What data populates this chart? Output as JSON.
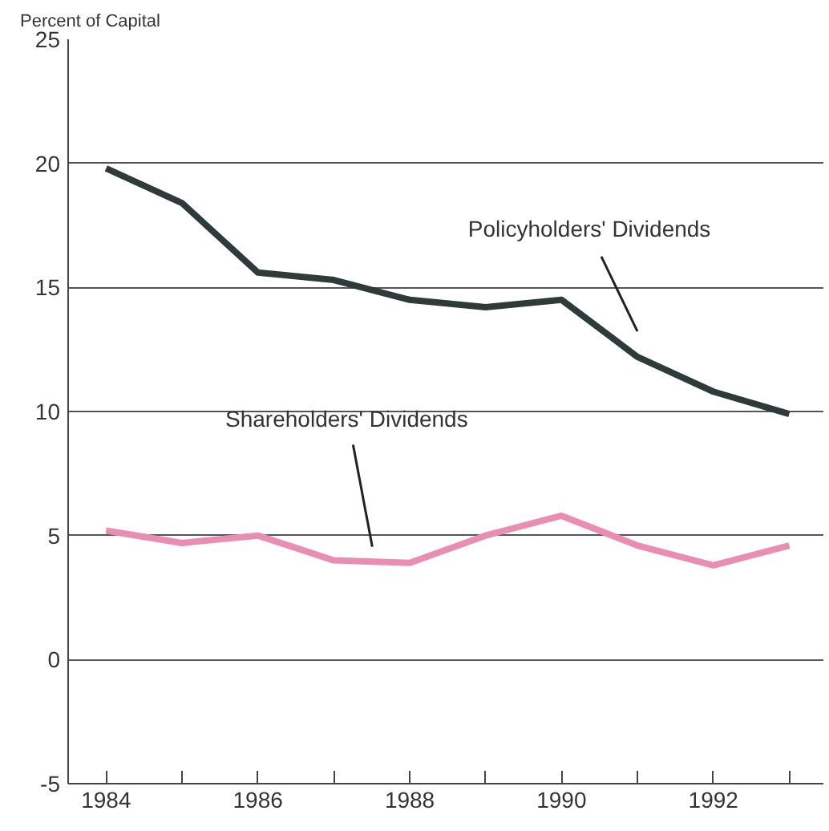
{
  "chart_data": {
    "type": "line",
    "ylabel": "Percent of Capital",
    "x": [
      1984,
      1985,
      1986,
      1987,
      1988,
      1989,
      1990,
      1991,
      1992,
      1993
    ],
    "series": [
      {
        "name": "Policyholders' Dividends",
        "color": "#2f3b3b",
        "values": [
          19.8,
          18.4,
          15.6,
          15.3,
          14.5,
          14.2,
          14.5,
          12.2,
          10.8,
          9.9
        ]
      },
      {
        "name": "Shareholders' Dividends",
        "color": "#e98db2",
        "values": [
          5.2,
          4.7,
          5.0,
          4.0,
          3.9,
          5.0,
          5.8,
          4.6,
          3.8,
          4.6
        ]
      }
    ],
    "xlim": [
      1983.5,
      1993.45
    ],
    "ylim": [
      -5,
      25
    ],
    "xticks": [
      1984,
      {
        "value": 1985,
        "label": null
      },
      1986,
      {
        "value": 1987,
        "label": null
      },
      1988,
      {
        "value": 1989,
        "label": null
      },
      1990,
      {
        "value": 1991,
        "label": null
      },
      1992,
      {
        "value": 1993,
        "label": null
      }
    ],
    "yticks": [
      -5,
      0,
      5,
      10,
      15,
      20,
      25
    ],
    "grid": "y",
    "legend": false,
    "marker": "none",
    "line_style": "solid"
  }
}
